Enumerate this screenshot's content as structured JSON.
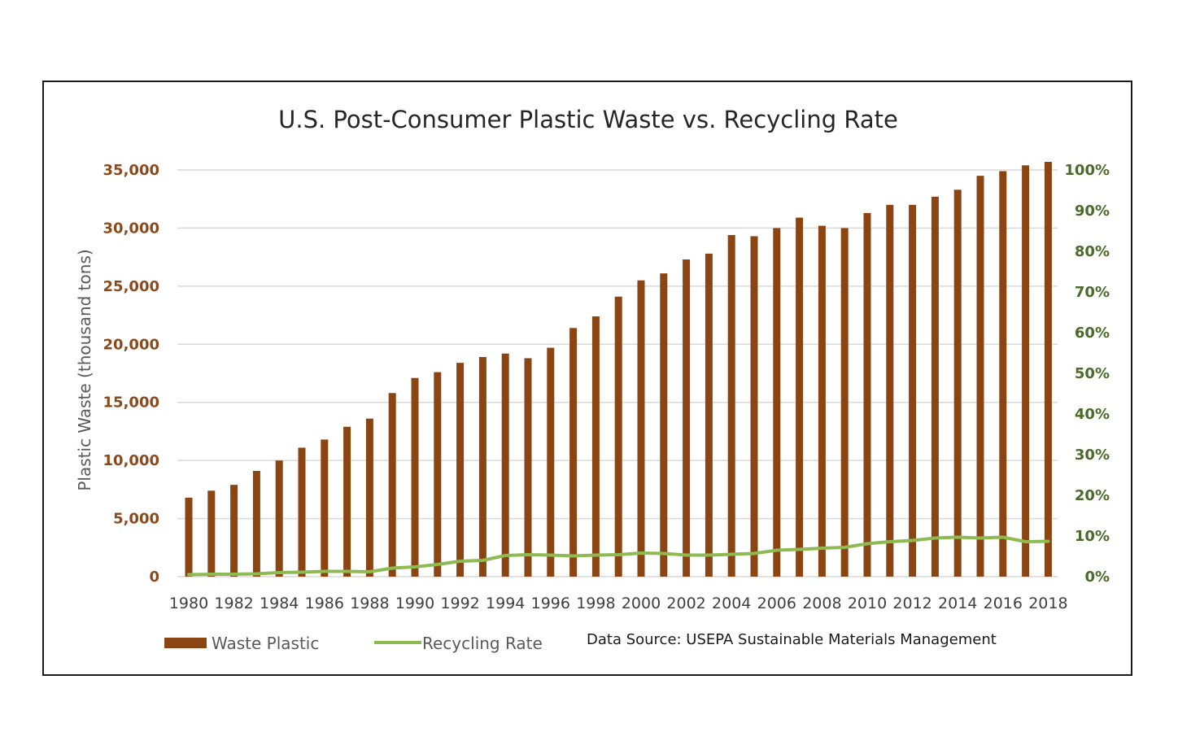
{
  "chart_data": {
    "type": "bar",
    "title": "U.S. Post-Consumer Plastic Waste vs. Recycling Rate",
    "ylabel": "Plastic Waste (thousand tons)",
    "ylim": [
      0,
      35000
    ],
    "y_ticks": [
      "0",
      "5,000",
      "10,000",
      "15,000",
      "20,000",
      "25,000",
      "30,000",
      "35,000"
    ],
    "y2lim": [
      0,
      100
    ],
    "y2_ticks": [
      "0%",
      "10%",
      "20%",
      "30%",
      "40%",
      "50%",
      "60%",
      "70%",
      "80%",
      "90%",
      "100%"
    ],
    "x": [
      1980,
      1981,
      1982,
      1983,
      1984,
      1985,
      1986,
      1987,
      1988,
      1989,
      1990,
      1991,
      1992,
      1993,
      1994,
      1995,
      1996,
      1997,
      1998,
      1999,
      2000,
      2001,
      2002,
      2003,
      2004,
      2005,
      2006,
      2007,
      2008,
      2009,
      2010,
      2011,
      2012,
      2013,
      2014,
      2015,
      2016,
      2017,
      2018
    ],
    "x_tick_labels": [
      "1980",
      "1982",
      "1984",
      "1986",
      "1988",
      "1990",
      "1992",
      "1994",
      "1996",
      "1998",
      "2000",
      "2002",
      "2004",
      "2006",
      "2008",
      "2010",
      "2012",
      "2014",
      "2016",
      "2018"
    ],
    "grid": true,
    "legend_position": "bottom",
    "series": [
      {
        "name": "Waste Plastic",
        "type": "bar",
        "axis": "left",
        "color": "#8b4513",
        "values": [
          6800,
          7400,
          7900,
          9100,
          10000,
          11100,
          11800,
          12900,
          13600,
          15800,
          17100,
          17600,
          18400,
          18900,
          19200,
          18800,
          19700,
          21400,
          22400,
          24100,
          25500,
          26100,
          27300,
          27800,
          29400,
          29300,
          30000,
          30900,
          30200,
          30000,
          31300,
          32000,
          32000,
          32700,
          33300,
          34500,
          34900,
          35400,
          35700
        ]
      },
      {
        "name": "Recycling Rate",
        "type": "line",
        "axis": "right",
        "color": "#8dbb52",
        "values": [
          0.5,
          0.6,
          0.6,
          0.7,
          1.0,
          1.1,
          1.3,
          1.3,
          1.2,
          2.1,
          2.4,
          3.0,
          3.8,
          4.0,
          5.2,
          5.4,
          5.3,
          5.1,
          5.3,
          5.4,
          5.8,
          5.7,
          5.3,
          5.3,
          5.5,
          5.7,
          6.5,
          6.7,
          7.0,
          7.2,
          8.1,
          8.6,
          8.9,
          9.5,
          9.7,
          9.5,
          9.7,
          8.6,
          8.7
        ]
      }
    ],
    "annotations": [
      "Data Source: USEPA Sustainable Materials Management"
    ]
  }
}
